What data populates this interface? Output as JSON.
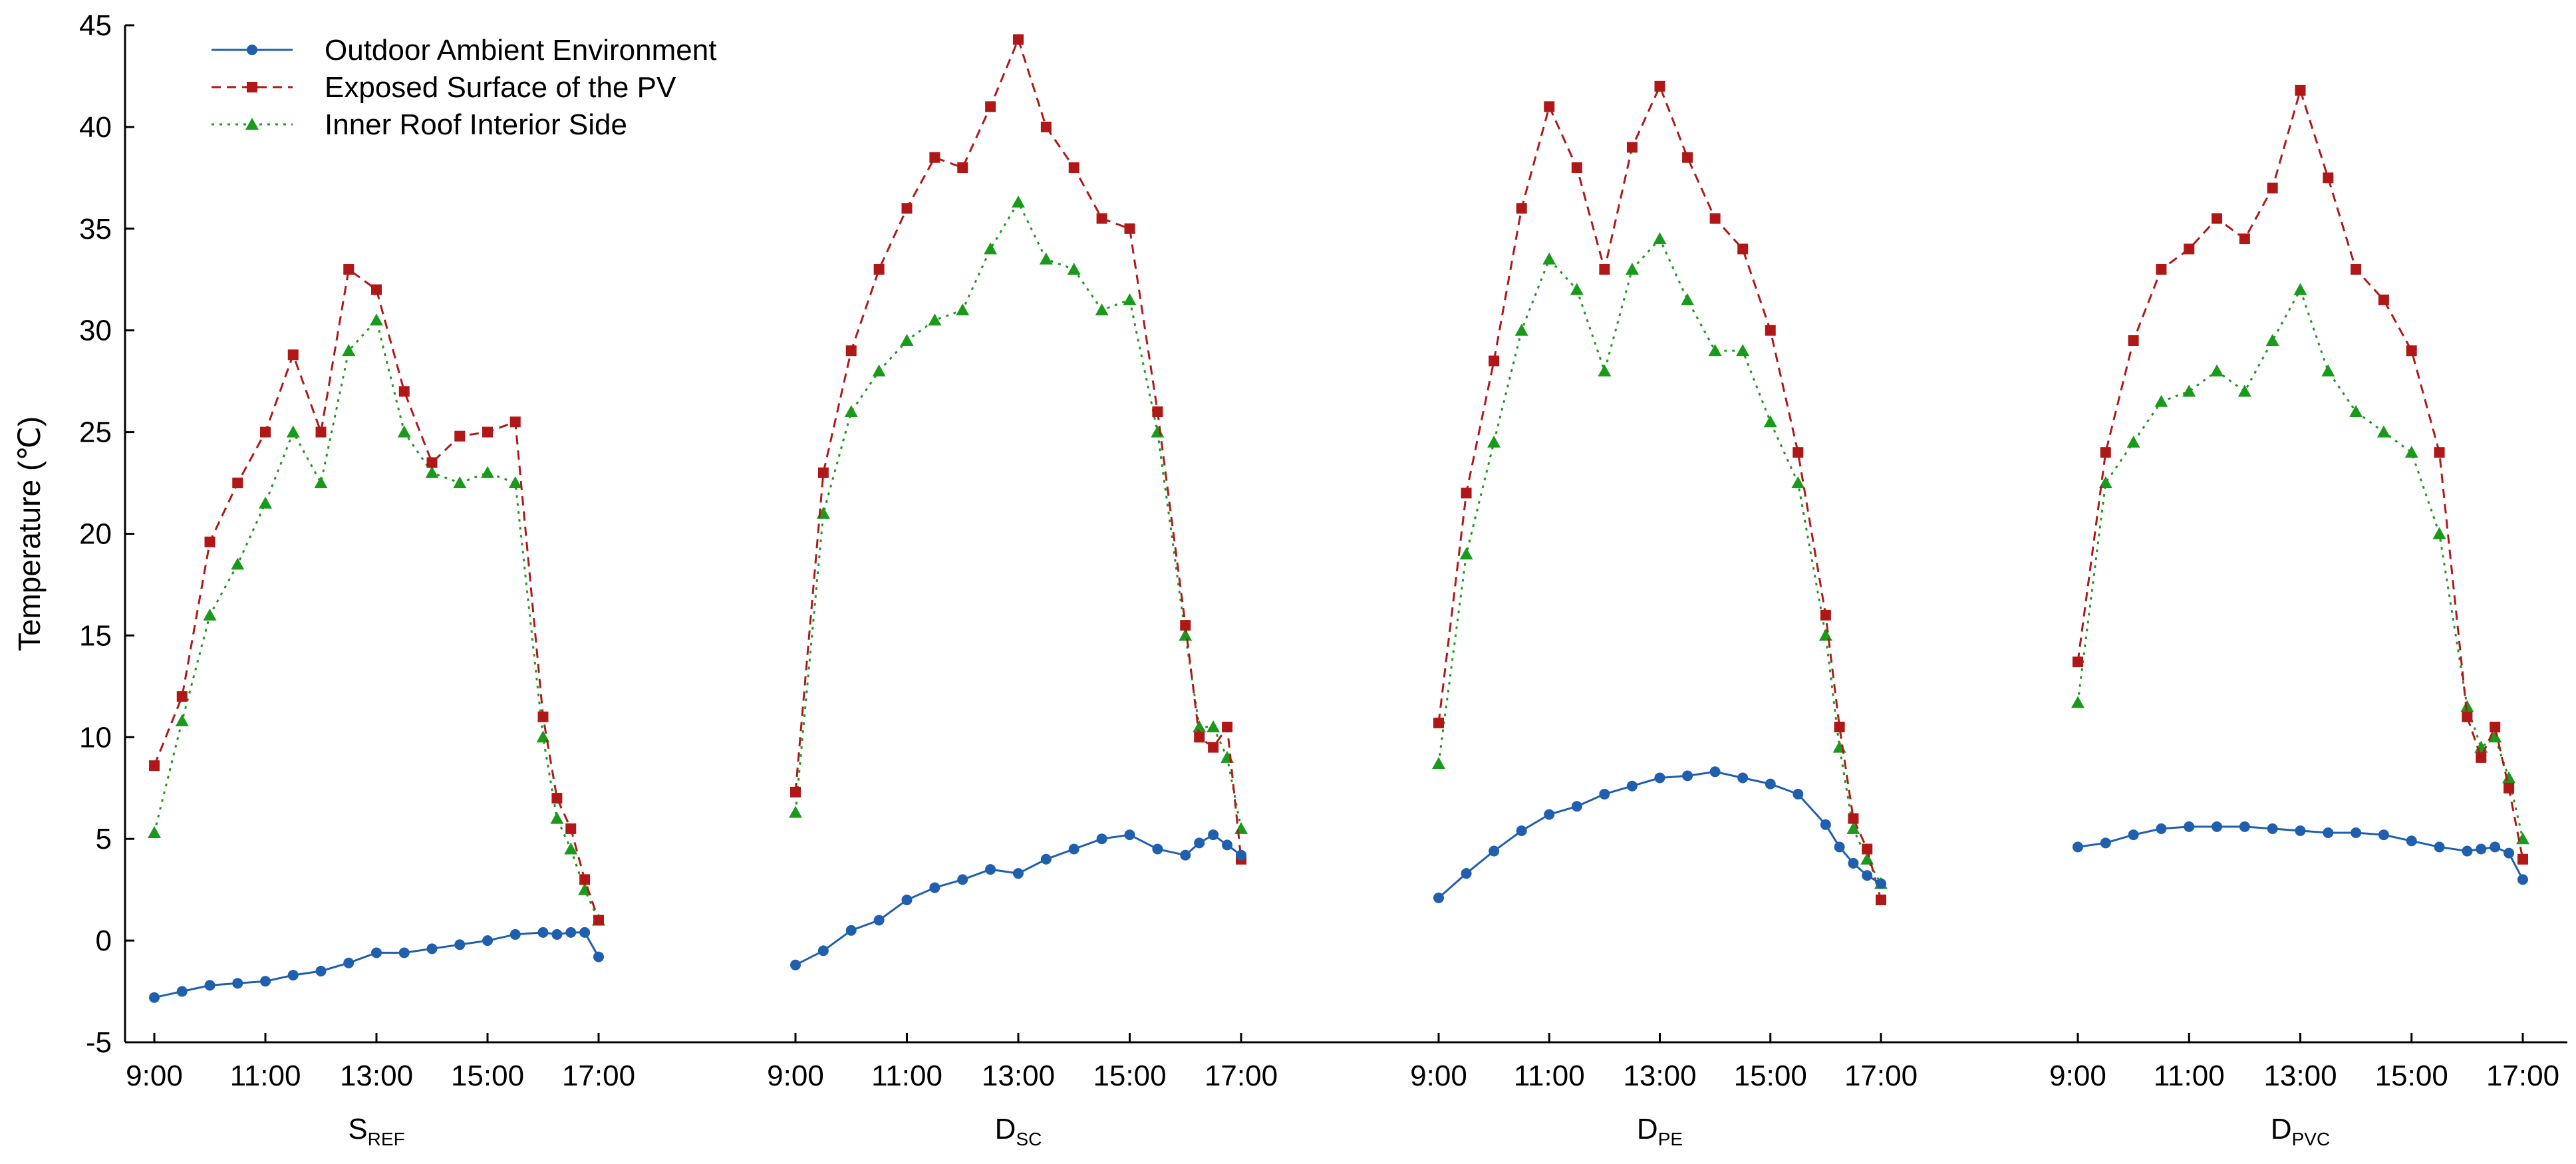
{
  "chart_data": {
    "type": "line",
    "ylabel": "Temperature (℃)",
    "ylim": [
      -5,
      45
    ],
    "yticks": [
      -5,
      0,
      5,
      10,
      15,
      20,
      25,
      30,
      35,
      40,
      45
    ],
    "xticks": [
      "9:00",
      "11:00",
      "13:00",
      "15:00",
      "17:00"
    ],
    "grid": false,
    "legend_position": "top-left",
    "legend": [
      {
        "name": "Outdoor Ambient Environment",
        "color": "#1f5fad",
        "marker": "circle",
        "dash": "solid"
      },
      {
        "name": "Exposed Surface of the PV",
        "color": "#b01818",
        "marker": "square",
        "dash": "dashed"
      },
      {
        "name": "Inner Roof Interior Side",
        "color": "#1a9a1a",
        "marker": "triangle",
        "dash": "dotted"
      }
    ],
    "x": [
      9.0,
      9.5,
      10.0,
      10.5,
      11.0,
      11.5,
      12.0,
      12.5,
      13.0,
      13.5,
      14.0,
      14.5,
      15.0,
      15.5,
      16.0,
      16.25,
      16.5,
      16.75,
      17.0
    ],
    "panels": [
      {
        "label": "S",
        "sublabel": "REF",
        "series": [
          {
            "name": "Outdoor Ambient Environment",
            "values": [
              -2.8,
              -2.5,
              -2.2,
              -2.1,
              -2.0,
              -1.7,
              -1.5,
              -1.1,
              -0.6,
              -0.6,
              -0.4,
              -0.2,
              0.0,
              0.3,
              0.4,
              0.3,
              0.4,
              0.4,
              -0.8
            ]
          },
          {
            "name": "Exposed Surface of the PV",
            "values": [
              8.6,
              12.0,
              19.6,
              22.5,
              25.0,
              28.8,
              25.0,
              33.0,
              32.0,
              27.0,
              23.5,
              24.8,
              25.0,
              25.5,
              11.0,
              7.0,
              5.5,
              3.0,
              1.0
            ]
          },
          {
            "name": "Inner Roof Interior Side",
            "values": [
              5.3,
              10.8,
              16.0,
              18.5,
              21.5,
              25.0,
              22.5,
              29.0,
              30.5,
              25.0,
              23.0,
              22.5,
              23.0,
              22.5,
              10.0,
              6.0,
              4.5,
              2.5,
              1.0
            ]
          }
        ]
      },
      {
        "label": "D",
        "sublabel": "SC",
        "series": [
          {
            "name": "Outdoor Ambient Environment",
            "values": [
              -1.2,
              -0.5,
              0.5,
              1.0,
              2.0,
              2.6,
              3.0,
              3.5,
              3.3,
              4.0,
              4.5,
              5.0,
              5.2,
              4.5,
              4.2,
              4.8,
              5.2,
              4.7,
              4.2
            ]
          },
          {
            "name": "Exposed Surface of the PV",
            "values": [
              7.3,
              23.0,
              29.0,
              33.0,
              36.0,
              38.5,
              38.0,
              41.0,
              44.3,
              40.0,
              38.0,
              35.5,
              35.0,
              26.0,
              15.5,
              10.0,
              9.5,
              10.5,
              4.0
            ]
          },
          {
            "name": "Inner Roof Interior Side",
            "values": [
              6.3,
              21.0,
              26.0,
              28.0,
              29.5,
              30.5,
              31.0,
              34.0,
              36.3,
              33.5,
              33.0,
              31.0,
              31.5,
              25.0,
              15.0,
              10.5,
              10.5,
              9.0,
              5.5
            ]
          }
        ]
      },
      {
        "label": "D",
        "sublabel": "PE",
        "series": [
          {
            "name": "Outdoor Ambient Environment",
            "values": [
              2.1,
              3.3,
              4.4,
              5.4,
              6.2,
              6.6,
              7.2,
              7.6,
              8.0,
              8.1,
              8.3,
              8.0,
              7.7,
              7.2,
              5.7,
              4.6,
              3.8,
              3.2,
              2.8
            ]
          },
          {
            "name": "Exposed Surface of the PV",
            "values": [
              10.7,
              22.0,
              28.5,
              36.0,
              41.0,
              38.0,
              33.0,
              39.0,
              42.0,
              38.5,
              35.5,
              34.0,
              30.0,
              24.0,
              16.0,
              10.5,
              6.0,
              4.5,
              2.0
            ]
          },
          {
            "name": "Inner Roof Interior Side",
            "values": [
              8.7,
              19.0,
              24.5,
              30.0,
              33.5,
              32.0,
              28.0,
              33.0,
              34.5,
              31.5,
              29.0,
              29.0,
              25.5,
              22.5,
              15.0,
              9.5,
              5.5,
              4.0,
              2.8
            ]
          }
        ]
      },
      {
        "label": "D",
        "sublabel": "PVC",
        "series": [
          {
            "name": "Outdoor Ambient Environment",
            "values": [
              4.6,
              4.8,
              5.2,
              5.5,
              5.6,
              5.6,
              5.6,
              5.5,
              5.4,
              5.3,
              5.3,
              5.2,
              4.9,
              4.6,
              4.4,
              4.5,
              4.6,
              4.3,
              3.0
            ]
          },
          {
            "name": "Exposed Surface of the PV",
            "values": [
              13.7,
              24.0,
              29.5,
              33.0,
              34.0,
              35.5,
              34.5,
              37.0,
              41.8,
              37.5,
              33.0,
              31.5,
              29.0,
              24.0,
              11.0,
              9.0,
              10.5,
              7.5,
              4.0
            ]
          },
          {
            "name": "Inner Roof Interior Side",
            "values": [
              11.7,
              22.5,
              24.5,
              26.5,
              27.0,
              28.0,
              27.0,
              29.5,
              32.0,
              28.0,
              26.0,
              25.0,
              24.0,
              20.0,
              11.5,
              9.5,
              10.0,
              8.0,
              5.0
            ]
          }
        ]
      }
    ]
  }
}
